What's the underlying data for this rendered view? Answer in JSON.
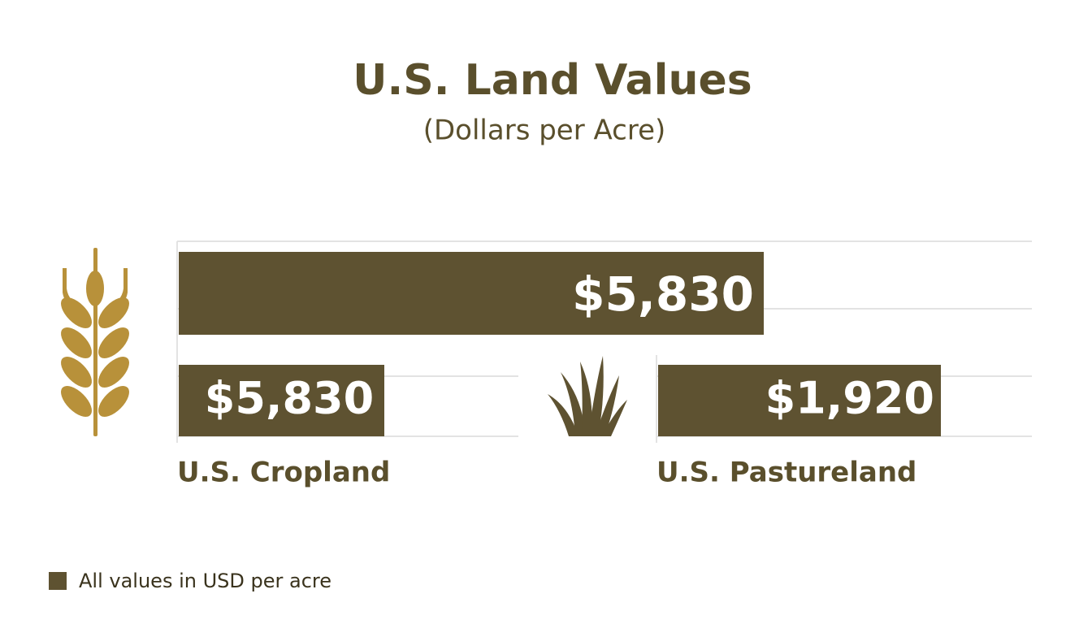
{
  "header": {
    "title": "U.S. Land Values",
    "subtitle": "(Dollars per Acre)"
  },
  "highlight": {
    "value": "$5,830"
  },
  "panels": [
    {
      "value": "$5,830",
      "label": "U.S. Cropland"
    },
    {
      "value": "$1,920",
      "label": "U.S. Pastureland"
    }
  ],
  "footnote": "All values in USD per acre"
}
